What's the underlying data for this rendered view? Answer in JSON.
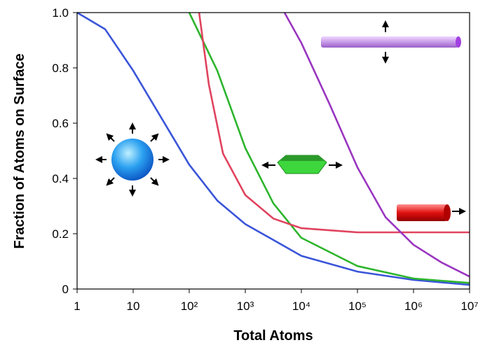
{
  "chart_data": {
    "type": "line",
    "x_label": "Total Atoms",
    "y_label": "Fraction of Atoms on Surface",
    "xscale": "log",
    "xlim": [
      1,
      10000000
    ],
    "ylim": [
      0,
      1
    ],
    "xticks": [
      1,
      10,
      {
        "value": 100,
        "label": "10²"
      },
      {
        "value": 1000,
        "label": "10³"
      },
      {
        "value": 10000,
        "label": "10⁴"
      },
      {
        "value": 100000,
        "label": "10⁵"
      },
      {
        "value": 1000000,
        "label": "10⁶"
      },
      {
        "value": 10000000,
        "label": "10⁷"
      }
    ],
    "yticks": [
      0,
      0.2,
      0.4,
      0.6,
      0.8,
      {
        "value": 1,
        "label": "1.0"
      }
    ],
    "series": [
      {
        "color": "#3a55d8",
        "x": [
          1,
          3.16,
          10,
          31.6,
          100,
          316,
          1000,
          10000,
          100000,
          1000000,
          10000000
        ],
        "values": [
          1.0,
          0.94,
          0.79,
          0.62,
          0.45,
          0.32,
          0.235,
          0.12,
          0.063,
          0.033,
          0.015
        ]
      },
      {
        "color": "#2db52d",
        "x": [
          100,
          316,
          1000,
          3160,
          10000,
          100000,
          1000000,
          10000000
        ],
        "values": [
          1.0,
          0.79,
          0.51,
          0.31,
          0.185,
          0.083,
          0.038,
          0.022
        ]
      },
      {
        "color": "#e0435e",
        "x": [
          150,
          224,
          400,
          1000,
          3160,
          10000,
          100000,
          10000000
        ],
        "values": [
          1.0,
          0.74,
          0.49,
          0.34,
          0.255,
          0.22,
          0.205,
          0.205
        ]
      },
      {
        "color": "#9a35c0",
        "x": [
          5000,
          10000,
          31600,
          100000,
          316000,
          1000000,
          3160000,
          10000000
        ],
        "values": [
          1.0,
          0.89,
          0.67,
          0.44,
          0.26,
          0.16,
          0.096,
          0.045
        ]
      }
    ]
  }
}
